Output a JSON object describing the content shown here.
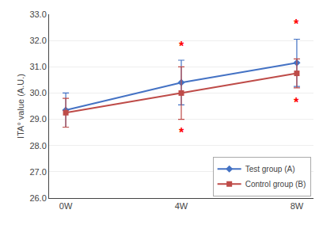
{
  "chart_data": {
    "type": "line",
    "categories": [
      "0W",
      "4W",
      "8W"
    ],
    "series": [
      {
        "name": "Test group (A)",
        "color": "#4472C4",
        "marker": "diamond",
        "values": [
          29.35,
          30.4,
          31.15
        ],
        "errors": [
          0.65,
          0.85,
          0.9
        ]
      },
      {
        "name": "Control group (B)",
        "color": "#BE4B48",
        "marker": "square",
        "values": [
          29.25,
          30.0,
          30.75
        ],
        "errors": [
          0.55,
          1.0,
          0.55
        ]
      }
    ],
    "ylabel": "ITA° value (A.U.)",
    "ylim": [
      26.0,
      33.0
    ],
    "yticks": [
      {
        "value": 26.0,
        "label": "26.0"
      },
      {
        "value": 27.0,
        "label": "27.0"
      },
      {
        "value": 28.0,
        "label": "28.0"
      },
      {
        "value": 29.0,
        "label": "29.0"
      },
      {
        "value": 30.0,
        "label": "30.0"
      },
      {
        "value": 31.0,
        "label": "31.0"
      },
      {
        "value": 32.0,
        "label": "32.0"
      },
      {
        "value": 33.0,
        "label": "33.0"
      }
    ],
    "grid": true,
    "legend": "lower right",
    "annotations": [
      {
        "text": "*",
        "x": "4W",
        "y": 31.45,
        "color": "#FF0000"
      },
      {
        "text": "*",
        "x": "4W",
        "y": 28.8,
        "color": "#FF0000"
      },
      {
        "text": "*",
        "x": "8W",
        "y": 32.3,
        "color": "#FF0000"
      },
      {
        "text": "*",
        "x": "8W",
        "y": 29.95,
        "color": "#FF0000"
      }
    ]
  }
}
